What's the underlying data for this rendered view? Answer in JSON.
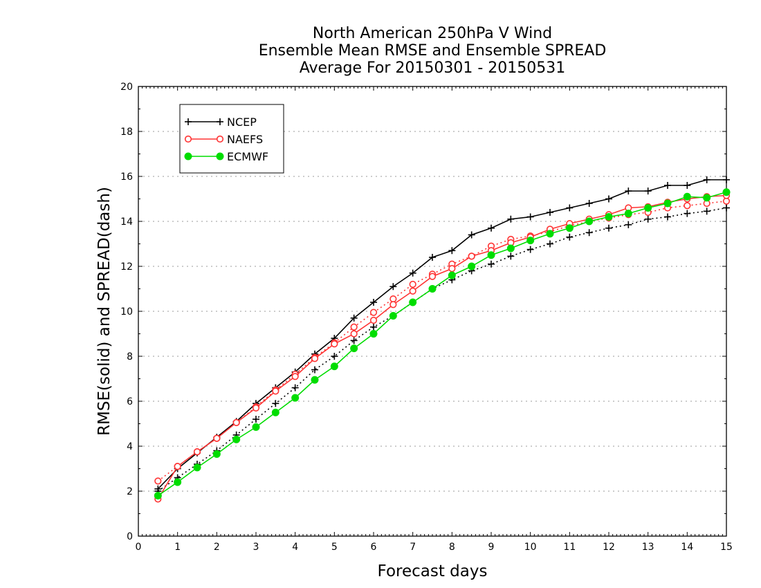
{
  "chart_data": {
    "type": "line",
    "title": [
      "North American 250hPa V Wind",
      "Ensemble Mean RMSE and Ensemble SPREAD",
      "Average For 20150301 - 20150531"
    ],
    "xlabel": "Forecast days",
    "ylabel": "RMSE(solid) and SPREAD(dash)",
    "xlim": [
      0,
      15
    ],
    "ylim": [
      0,
      20
    ],
    "xticks": [
      0,
      1,
      2,
      3,
      4,
      5,
      6,
      7,
      8,
      9,
      10,
      11,
      12,
      13,
      14,
      15
    ],
    "yticks": [
      0,
      2,
      4,
      6,
      8,
      10,
      12,
      14,
      16,
      18,
      20
    ],
    "grid": "dotted horizontal",
    "legend_position": "top-left",
    "x": [
      0.5,
      1.0,
      1.5,
      2.0,
      2.5,
      3.0,
      3.5,
      4.0,
      4.5,
      5.0,
      5.5,
      6.0,
      6.5,
      7.0,
      7.5,
      8.0,
      8.5,
      9.0,
      9.5,
      10.0,
      10.5,
      11.0,
      11.5,
      12.0,
      12.5,
      13.0,
      13.5,
      14.0,
      14.5,
      15.0
    ],
    "series": [
      {
        "name": "NCEP",
        "color": "#000000",
        "marker": "plus",
        "rmse": [
          2.1,
          3.0,
          3.7,
          4.4,
          5.1,
          5.9,
          6.6,
          7.3,
          8.1,
          8.8,
          9.7,
          10.4,
          11.1,
          11.7,
          12.4,
          12.7,
          13.4,
          13.7,
          14.1,
          14.2,
          14.4,
          14.6,
          14.8,
          15.0,
          15.35,
          15.35,
          15.6,
          15.6,
          15.85,
          15.85
        ],
        "spread": [
          2.0,
          2.6,
          3.2,
          3.8,
          4.5,
          5.2,
          5.9,
          6.6,
          7.4,
          8.0,
          8.7,
          9.3,
          9.8,
          10.4,
          11.0,
          11.4,
          11.8,
          12.1,
          12.45,
          12.75,
          13.0,
          13.3,
          13.5,
          13.7,
          13.85,
          14.1,
          14.2,
          14.35,
          14.45,
          14.6
        ]
      },
      {
        "name": "NAEFS",
        "color": "#ff3333",
        "marker": "open-circle",
        "rmse": [
          1.65,
          3.1,
          3.75,
          4.35,
          5.05,
          5.7,
          6.45,
          7.1,
          7.9,
          8.55,
          9.0,
          9.6,
          10.3,
          10.9,
          11.55,
          11.9,
          12.45,
          12.7,
          13.05,
          13.3,
          13.65,
          13.9,
          14.1,
          14.3,
          14.6,
          14.65,
          14.85,
          15.0,
          15.1,
          15.15
        ],
        "spread": [
          2.45,
          3.1,
          3.75,
          4.35,
          5.05,
          5.75,
          6.5,
          7.2,
          7.95,
          8.6,
          9.3,
          9.95,
          10.55,
          11.2,
          11.65,
          12.1,
          12.45,
          12.9,
          13.2,
          13.35,
          13.55,
          13.8,
          14.0,
          14.15,
          14.3,
          14.4,
          14.6,
          14.7,
          14.8,
          14.9
        ]
      },
      {
        "name": "ECMWF",
        "color": "#00dd00",
        "marker": "filled-circle",
        "rmse": [
          1.8,
          2.4,
          3.05,
          3.65,
          4.3,
          4.85,
          5.5,
          6.15,
          6.95,
          7.55,
          8.35,
          9.0,
          9.8,
          10.4,
          11.0,
          11.6,
          12.0,
          12.5,
          12.8,
          13.15,
          13.45,
          13.7,
          14.0,
          14.2,
          14.35,
          14.6,
          14.8,
          15.1,
          15.05,
          15.3
        ]
      }
    ]
  }
}
